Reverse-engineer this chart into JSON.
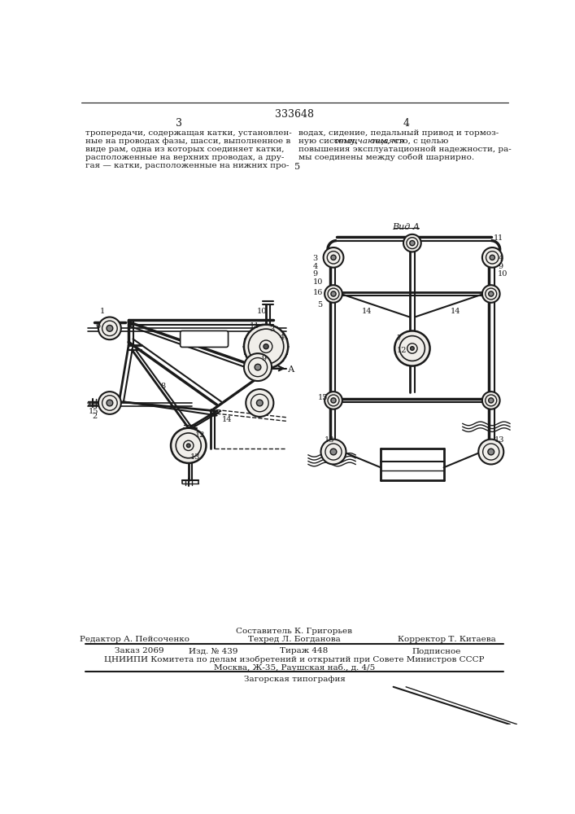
{
  "page_number_center": "333648",
  "page_left": "3",
  "page_right": "4",
  "text_left": "тропередачи, содержащая катки, установлен-\nные на проводах фазы, шасси, выполненное в\nвиде рам, одна из которых соединяет катки,\nрасположенные на верхних проводах, а дру-\nгая — катки, расположенные на нижних про-",
  "text_right_line1": "водах, сидение, педальный привод и тормоз-",
  "text_right_line2_pre": "ную систему, ",
  "text_right_line2_italic": "отличающаяся",
  "text_right_line2_post": " тем, что, с целью",
  "text_right_line3": "повышения эксплуатационной надежности, ра-",
  "text_right_line4": "мы соединены между собой шарнирно.",
  "number_5": "5",
  "label_vida": "Вид А",
  "footer_line1_left": "Редактор А. Пейсоченко",
  "footer_line1_center_top": "Составитель К. Григорьев",
  "footer_line1_center_bot": "Техред Л. Богданова",
  "footer_line1_right": "Корректор Т. Китаева",
  "footer_line2_col1": "Заказ 2069",
  "footer_line2_col2": "Изд. № 439",
  "footer_line2_col3": "Тираж 448",
  "footer_line2_col4": "Подписное",
  "footer_line3": "ЦНИИПИ Комитета по делам изобретений и открытий при Совете Министров СССР",
  "footer_line4": "Москва, Ж-35, Раушская наб., д. 4/5",
  "footer_line5": "Загорская типография",
  "bg_color": "#ffffff",
  "text_color": "#1a1a1a",
  "line_color": "#1a1a1a"
}
